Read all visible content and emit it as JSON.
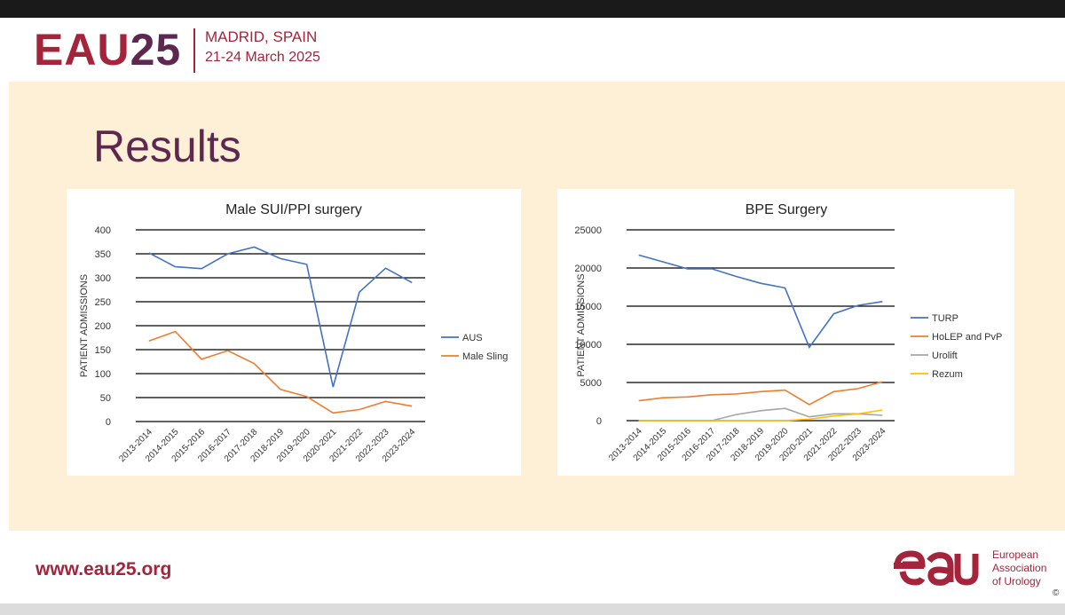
{
  "header": {
    "logo_text": "EAU",
    "logo_number": "25",
    "city": "MADRID, SPAIN",
    "dates": "21-24 March 2025"
  },
  "slide": {
    "title": "Results"
  },
  "footer": {
    "url": "www.eau25.org",
    "org_line1": "European",
    "org_line2": "Association",
    "org_line3": "of Urology",
    "copyright": "©"
  },
  "colors": {
    "brand_red": "#a4243b",
    "brand_purple": "#5e2750",
    "content_bg": "#fdf0d6"
  },
  "chart_data": [
    {
      "type": "line",
      "title": "Male SUI/PPI surgery",
      "xlabel": "",
      "ylabel": "PATIENT ADMISSIONS",
      "ylim": [
        0,
        400
      ],
      "yticks": [
        0,
        50,
        100,
        150,
        200,
        250,
        300,
        350,
        400
      ],
      "grid": true,
      "legend": "right",
      "categories": [
        "2013-2014",
        "2014-2015",
        "2015-2016",
        "2016-2017",
        "2017-2018",
        "2018-2019",
        "2019-2020",
        "2020-2021",
        "2021-2022",
        "2022-2023",
        "2023-2024"
      ],
      "series": [
        {
          "name": "AUS",
          "color": "#4472c4",
          "values": [
            352,
            323,
            319,
            350,
            364,
            340,
            328,
            72,
            270,
            320,
            290
          ]
        },
        {
          "name": "Male Sling",
          "color": "#ed7d31",
          "values": [
            168,
            188,
            130,
            148,
            121,
            67,
            52,
            18,
            25,
            42,
            32
          ]
        }
      ]
    },
    {
      "type": "line",
      "title": "BPE Surgery",
      "xlabel": "",
      "ylabel": "PATIENT ADMISSIONS",
      "ylim": [
        0,
        25000
      ],
      "yticks": [
        0,
        5000,
        10000,
        15000,
        20000,
        25000
      ],
      "grid": true,
      "legend": "right",
      "categories": [
        "2013-2014",
        "2014-2015",
        "2015-2016",
        "2016-2017",
        "2017-2018",
        "2018-2019",
        "2019-2020",
        "2020-2021",
        "2021-2022",
        "2022-2023",
        "2023-2024"
      ],
      "series": [
        {
          "name": "TURP",
          "color": "#4472c4",
          "values": [
            21700,
            20800,
            19900,
            19900,
            18900,
            18000,
            17400,
            9600,
            14000,
            15100,
            15600
          ]
        },
        {
          "name": "HoLEP and PvP",
          "color": "#ed7d31",
          "values": [
            2600,
            3000,
            3100,
            3400,
            3500,
            3800,
            4000,
            2100,
            3800,
            4200,
            5100
          ]
        },
        {
          "name": "Urolift",
          "color": "#a5a5a5",
          "values": [
            0,
            0,
            0,
            0,
            800,
            1300,
            1600,
            500,
            900,
            900,
            700
          ]
        },
        {
          "name": "Rezum",
          "color": "#ffc000",
          "values": [
            0,
            0,
            0,
            0,
            0,
            0,
            0,
            200,
            600,
            900,
            1400
          ]
        }
      ]
    }
  ]
}
